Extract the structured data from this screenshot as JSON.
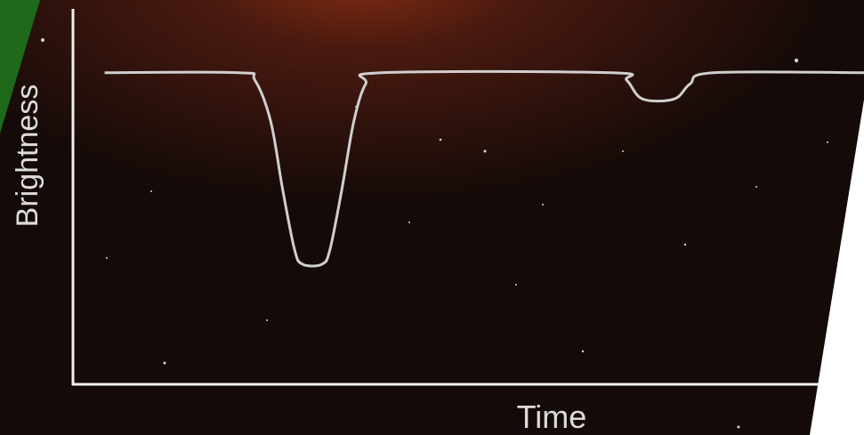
{
  "chart_data": {
    "type": "line",
    "y_label": "Brightness",
    "x_label": "Time",
    "x": [
      4,
      21,
      23,
      25,
      26.5,
      28,
      29,
      31.5,
      32.5,
      34,
      35.5,
      37,
      39,
      68,
      70,
      72,
      76,
      78,
      81,
      100
    ],
    "values": [
      83,
      83,
      81,
      70,
      52,
      36,
      32,
      32,
      36,
      52,
      70,
      80,
      83,
      83,
      81,
      76,
      76,
      80,
      83,
      83
    ],
    "color": "#cfcfcf",
    "xlim": [
      0,
      100
    ],
    "ylim": [
      0,
      100
    ]
  }
}
